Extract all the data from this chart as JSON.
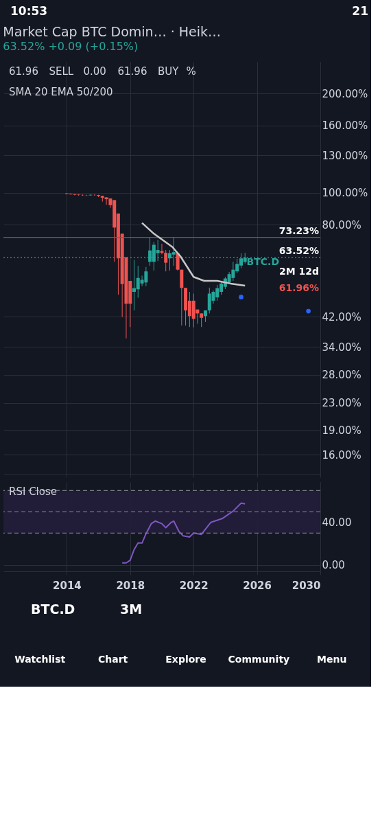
{
  "chart_data": [
    {
      "type": "other",
      "annotations": [
        "10:53",
        "21"
      ]
    },
    {
      "type": "candlestick",
      "title": "Market Cap BTC Domin…  · Heik…",
      "subtitle": "63.52%  +0.09 (+0.15%)",
      "x": [
        "2014-01",
        "2014-04",
        "2014-07",
        "2014-10",
        "2015-01",
        "2015-04",
        "2015-07",
        "2015-10",
        "2016-01",
        "2016-04",
        "2016-07",
        "2016-10",
        "2017-01",
        "2017-04",
        "2017-07",
        "2017-10",
        "2018-01",
        "2018-04",
        "2018-07",
        "2018-10",
        "2019-01",
        "2019-04",
        "2019-07",
        "2019-10",
        "2020-01",
        "2020-04",
        "2020-07",
        "2020-10",
        "2021-01",
        "2021-04",
        "2021-07",
        "2021-10",
        "2022-01",
        "2022-04",
        "2022-07",
        "2022-10",
        "2023-01",
        "2023-04",
        "2023-07",
        "2023-10",
        "2024-01",
        "2024-04",
        "2024-07",
        "2024-10",
        "2025-01",
        "2025-04"
      ],
      "ohlc": [
        [
          99.6,
          99.8,
          98.9,
          99.2
        ],
        [
          99.3,
          99.5,
          98.6,
          98.9
        ],
        [
          99.0,
          99.2,
          98.2,
          98.6
        ],
        [
          98.7,
          99.0,
          98.0,
          98.4
        ],
        [
          98.5,
          98.8,
          97.9,
          98.3
        ],
        [
          98.3,
          98.6,
          97.8,
          98.2
        ],
        [
          98.2,
          98.8,
          98.0,
          98.6
        ],
        [
          98.5,
          98.9,
          98.0,
          98.4
        ],
        [
          98.4,
          98.6,
          97.0,
          97.8
        ],
        [
          97.8,
          98.0,
          94.0,
          96.6
        ],
        [
          96.8,
          97.0,
          92.0,
          95.6
        ],
        [
          96.1,
          96.1,
          90.0,
          91.7
        ],
        [
          95.0,
          95.0,
          61.7,
          78.4
        ],
        [
          86.5,
          86.5,
          49.0,
          63.2
        ],
        [
          75.1,
          75.1,
          41.9,
          52.8
        ],
        [
          63.7,
          63.7,
          36.1,
          46.0
        ],
        [
          54.0,
          54.0,
          39.1,
          46.0
        ],
        [
          50.0,
          62.5,
          43.9,
          51.3
        ],
        [
          50.9,
          60.0,
          48.0,
          55.1
        ],
        [
          53.0,
          56.0,
          52.0,
          54.4
        ],
        [
          53.4,
          59.5,
          52.0,
          57.7
        ],
        [
          61.7,
          73.1,
          60.0,
          66.8
        ],
        [
          61.7,
          71.0,
          58.0,
          69.5
        ],
        [
          65.5,
          72.0,
          62.0,
          67.0
        ],
        [
          66.5,
          70.0,
          65.0,
          65.7
        ],
        [
          65.7,
          67.0,
          57.7,
          61.3
        ],
        [
          63.2,
          67.0,
          58.0,
          65.5
        ],
        [
          64.9,
          73.1,
          60.0,
          66.0
        ],
        [
          65.5,
          66.0,
          58.0,
          58.4
        ],
        [
          58.4,
          58.4,
          39.5,
          51.4
        ],
        [
          51.4,
          51.4,
          39.5,
          43.9
        ],
        [
          47.0,
          50.0,
          39.1,
          42.2
        ],
        [
          47.0,
          49.4,
          39.0,
          41.4
        ],
        [
          44.2,
          44.2,
          40.0,
          43.0
        ],
        [
          43.0,
          43.0,
          39.1,
          41.7
        ],
        [
          42.2,
          43.9,
          40.5,
          43.9
        ],
        [
          43.9,
          51.5,
          43.0,
          49.4
        ],
        [
          47.0,
          50.5,
          46.0,
          50.0
        ],
        [
          48.1,
          52.5,
          47.0,
          51.3
        ],
        [
          50.0,
          53.5,
          49.0,
          53.0
        ],
        [
          51.8,
          55.5,
          51.0,
          54.9
        ],
        [
          53.4,
          57.5,
          53.0,
          56.6
        ],
        [
          55.1,
          61.7,
          54.0,
          58.4
        ],
        [
          57.7,
          63.0,
          57.0,
          60.8
        ],
        [
          60.1,
          65.5,
          59.0,
          63.2
        ],
        [
          61.7,
          65.7,
          61.0,
          63.5
        ]
      ],
      "series": [
        {
          "type": "line",
          "color": "#c8c8c8",
          "x": [
            "2018-10",
            "2019-07",
            "2020-09",
            "2021-03",
            "2022-01",
            "2022-09",
            "2023-07",
            "2024-05",
            "2025-04"
          ],
          "values": [
            81.0,
            75.1,
            68.4,
            64.2,
            55.5,
            54.0,
            54.0,
            53.0,
            52.2
          ]
        },
        {
          "type": "scatter",
          "color": "#2962ff",
          "x": [
            "2025-01",
            "2029-04"
          ],
          "values": [
            48.2,
            43.7
          ]
        }
      ],
      "xlim": [
        "2010-01",
        "2030-01"
      ],
      "xticks": [
        "2014",
        "2018",
        "2022",
        "2026",
        "2030"
      ],
      "log": true,
      "ylim": [
        14,
        250
      ],
      "yticks": [
        {
          "value": 200,
          "label": "200.00%"
        },
        {
          "value": 160,
          "label": "160.00%"
        },
        {
          "value": 130,
          "label": "130.00%"
        },
        {
          "value": 100,
          "label": "100.00%"
        },
        {
          "value": 80,
          "label": "80.00%"
        },
        {
          "value": 42,
          "label": "42.00%"
        },
        {
          "value": 34,
          "label": "34.00%"
        },
        {
          "value": 28,
          "label": "28.00%"
        },
        {
          "value": 23,
          "label": "23.00%"
        },
        {
          "value": 19,
          "label": "19.00%"
        },
        {
          "value": 16,
          "label": "16.00%"
        }
      ],
      "grid": true,
      "tick_labels": "y",
      "ref_lines": [
        {
          "axis": "y",
          "value": 73.23,
          "label": "73.23%",
          "color": "#2962ff",
          "line_style": "solid"
        },
        {
          "axis": "y",
          "value": 63.52,
          "label": "63.52%",
          "color": "#26a69a",
          "line_style": "dotted"
        }
      ],
      "annotations": [
        "61.96",
        "SELL",
        "0.00",
        "61.96",
        "BUY",
        "%",
        "SMA 20 EMA 50/200",
        {
          "text": "BTC.D",
          "y": 63.52
        },
        {
          "text": "2M 12d",
          "y": 63.52
        },
        "61.96%"
      ]
    },
    {
      "type": "line",
      "x": [
        "2017-07",
        "2017-10",
        "2018-01",
        "2018-04",
        "2018-07",
        "2018-10",
        "2019-01",
        "2019-05",
        "2019-08",
        "2020-01",
        "2020-04",
        "2020-08",
        "2020-10",
        "2021-02",
        "2021-05",
        "2021-10",
        "2022-01",
        "2022-07",
        "2023-02",
        "2023-11",
        "2024-07",
        "2025-01",
        "2025-04"
      ],
      "series": [
        {
          "color": "#7e57c2",
          "values": [
            1.9,
            1.9,
            4.4,
            14.4,
            20.6,
            20.6,
            29.4,
            38.8,
            41.3,
            38.8,
            35.0,
            40.0,
            41.3,
            31.3,
            27.5,
            26.3,
            30.0,
            28.8,
            40.0,
            43.8,
            50.6,
            58.1,
            57.5
          ]
        }
      ],
      "xlim": [
        "2010-01",
        "2030-01"
      ],
      "xticks": [
        "2014",
        "2018",
        "2022",
        "2026",
        "2030"
      ],
      "ylim": [
        -6,
        78
      ],
      "yticks": [
        {
          "value": 0,
          "label": "0.00"
        },
        {
          "value": 40,
          "label": "40.00"
        }
      ],
      "grid": true,
      "bands": [
        {
          "axis": "y",
          "from": 30,
          "to": 70,
          "color": "#231d3a"
        }
      ],
      "ref_lines": [
        {
          "axis": "y",
          "value": 30,
          "color": "#787b86",
          "line_style": "dashed"
        },
        {
          "axis": "y",
          "value": 50,
          "color": "#787b86",
          "line_style": "dashed"
        },
        {
          "axis": "y",
          "value": 70,
          "color": "#787b86",
          "line_style": "dashed"
        }
      ],
      "annotations": [
        "RSI Close"
      ]
    },
    {
      "type": "other",
      "annotations": [
        "BTC.D",
        "3M",
        "Watchlist",
        "Chart",
        "Explore",
        "Community",
        "Menu"
      ]
    }
  ]
}
